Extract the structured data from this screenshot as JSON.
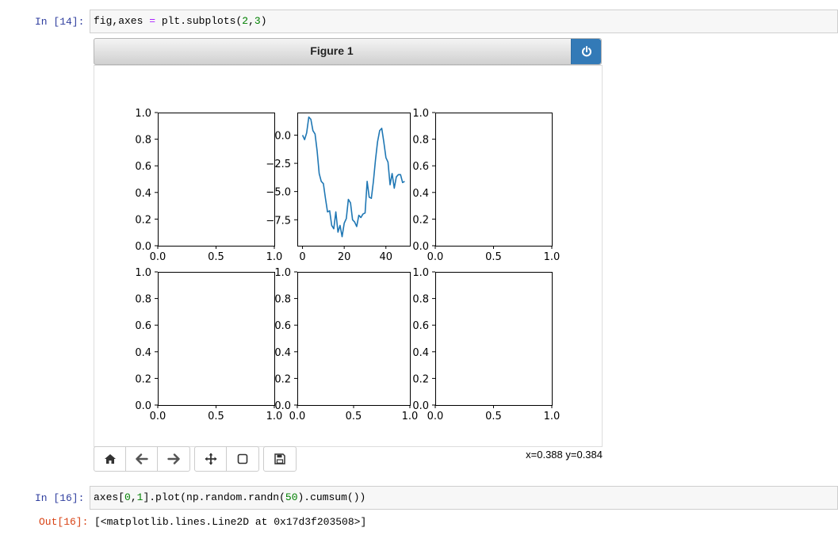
{
  "cells": {
    "in14": {
      "prompt": "In  [14]:",
      "code_parts": [
        "fig,axes ",
        "=",
        " plt.subplots(",
        "2",
        ",",
        "3",
        ")"
      ]
    },
    "in16": {
      "prompt": "In  [16]:",
      "code_parts": [
        "axes[",
        "0",
        ",",
        "1",
        "].plot(np.random.randn(",
        "50",
        ").cumsum())"
      ]
    },
    "out16": {
      "prompt": "Out[16]:",
      "text": "[<matplotlib.lines.Line2D at 0x17d3f203508>]"
    }
  },
  "figure": {
    "title": "Figure 1",
    "power_icon": "power-icon",
    "toolbar": [
      "home-icon",
      "back-arrow-icon",
      "forward-arrow-icon",
      "pan-move-icon",
      "zoom-rect-icon",
      "save-icon"
    ],
    "coords_text": "x=0.388 y=0.384"
  },
  "chart_data": {
    "type": "line",
    "layout": "2x3 subplots",
    "axes": [
      {
        "position": "row 0, col 0",
        "type": "empty",
        "xlim": [
          0,
          1
        ],
        "ylim": [
          0,
          1
        ],
        "xticks": [
          "0.0",
          "0.5",
          "1.0"
        ],
        "yticks": [
          "0.0",
          "0.2",
          "0.4",
          "0.6",
          "0.8",
          "1.0"
        ]
      },
      {
        "position": "row 0, col 1",
        "type": "line",
        "xticks": [
          "0",
          "20",
          "40"
        ],
        "yticks": [
          "0.0",
          "−2.5",
          "−5.0",
          "−7.5"
        ],
        "xlim": [
          -2.5,
          51.5
        ],
        "ylim": [
          -9.8,
          2.0
        ],
        "series": [
          {
            "color": "#1f77b4",
            "x": [
              0,
              1,
              2,
              3,
              4,
              5,
              6,
              7,
              8,
              9,
              10,
              11,
              12,
              13,
              14,
              15,
              16,
              17,
              18,
              19,
              20,
              21,
              22,
              23,
              24,
              25,
              26,
              27,
              28,
              29,
              30,
              31,
              32,
              33,
              34,
              35,
              36,
              37,
              38,
              39,
              40,
              41,
              42,
              43,
              44,
              45,
              46,
              47,
              48,
              49
            ],
            "y": [
              0.0,
              -0.4,
              0.2,
              1.6,
              1.4,
              0.4,
              0.1,
              -1.4,
              -3.4,
              -4.1,
              -4.3,
              -5.6,
              -6.8,
              -6.7,
              -8.0,
              -8.3,
              -6.8,
              -8.6,
              -8.0,
              -9.0,
              -7.8,
              -7.4,
              -5.7,
              -6.0,
              -7.5,
              -7.7,
              -8.1,
              -7.1,
              -7.3,
              -7.0,
              -6.9,
              -4.1,
              -5.5,
              -5.6,
              -4.1,
              -2.2,
              -0.6,
              0.4,
              0.6,
              -0.6,
              -2.0,
              -2.4,
              -4.4,
              -3.4,
              -4.7,
              -3.7,
              -3.5,
              -3.5,
              -4.2,
              -4.1
            ]
          }
        ]
      },
      {
        "position": "row 0, col 2",
        "type": "empty",
        "xlim": [
          0,
          1
        ],
        "ylim": [
          0,
          1
        ],
        "xticks": [
          "0.0",
          "0.5",
          "1.0"
        ],
        "yticks": [
          "0.0",
          "0.2",
          "0.4",
          "0.6",
          "0.8",
          "1.0"
        ]
      },
      {
        "position": "row 1, col 0",
        "type": "empty",
        "xlim": [
          0,
          1
        ],
        "ylim": [
          0,
          1
        ],
        "xticks": [
          "0.0",
          "0.5",
          "1.0"
        ],
        "yticks": [
          "0.0",
          "0.2",
          "0.4",
          "0.6",
          "0.8",
          "1.0"
        ]
      },
      {
        "position": "row 1, col 1",
        "type": "empty",
        "xlim": [
          0,
          1
        ],
        "ylim": [
          0,
          1
        ],
        "xticks": [
          "0.0",
          "0.5",
          "1.0"
        ],
        "yticks": [
          "0.0",
          "0.2",
          "0.4",
          "0.6",
          "0.8",
          "1.0"
        ]
      },
      {
        "position": "row 1, col 2",
        "type": "empty",
        "xlim": [
          0,
          1
        ],
        "ylim": [
          0,
          1
        ],
        "xticks": [
          "0.0",
          "0.5",
          "1.0"
        ],
        "yticks": [
          "0.0",
          "0.2",
          "0.4",
          "0.6",
          "0.8",
          "1.0"
        ]
      }
    ]
  }
}
